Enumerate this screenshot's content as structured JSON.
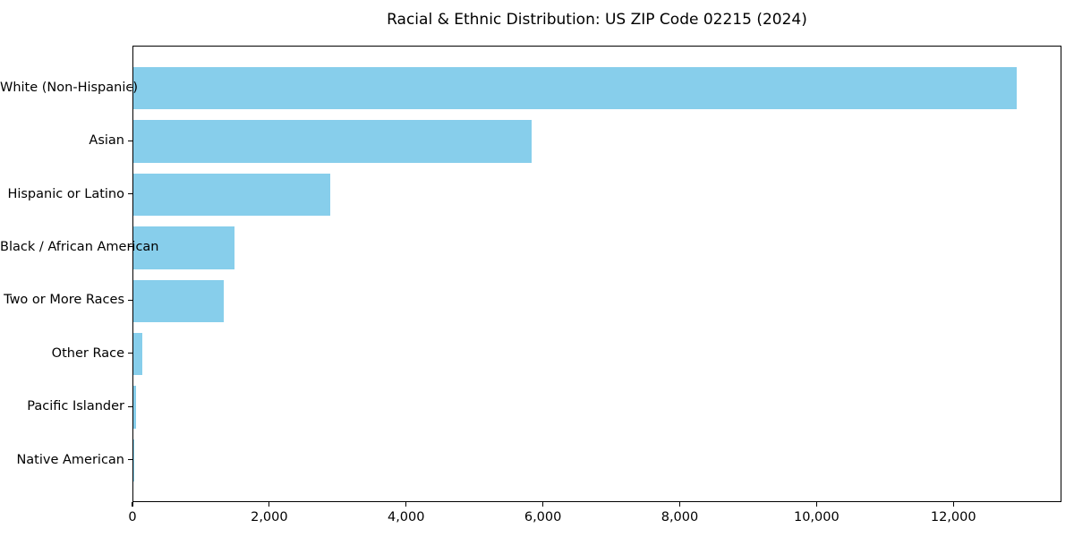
{
  "chart_data": {
    "type": "bar",
    "orientation": "horizontal",
    "title": "Racial & Ethnic Distribution: US ZIP Code 02215 (2024)",
    "categories": [
      "White (Non-Hispanic)",
      "Asian",
      "Hispanic or Latino",
      "Black / African American",
      "Two or More Races",
      "Other Race",
      "Pacific Islander",
      "Native American"
    ],
    "values": [
      12940,
      5830,
      2890,
      1475,
      1330,
      135,
      40,
      5
    ],
    "xlabel": "",
    "ylabel": "",
    "xlim": [
      0,
      13580
    ],
    "x_ticks": [
      0,
      2000,
      4000,
      6000,
      8000,
      10000,
      12000
    ],
    "x_tick_labels": [
      "0",
      "2,000",
      "4,000",
      "6,000",
      "8,000",
      "10,000",
      "12,000"
    ],
    "bar_color": "#87CEEB",
    "text_color": "#000000",
    "grid": false,
    "legend": "none"
  }
}
